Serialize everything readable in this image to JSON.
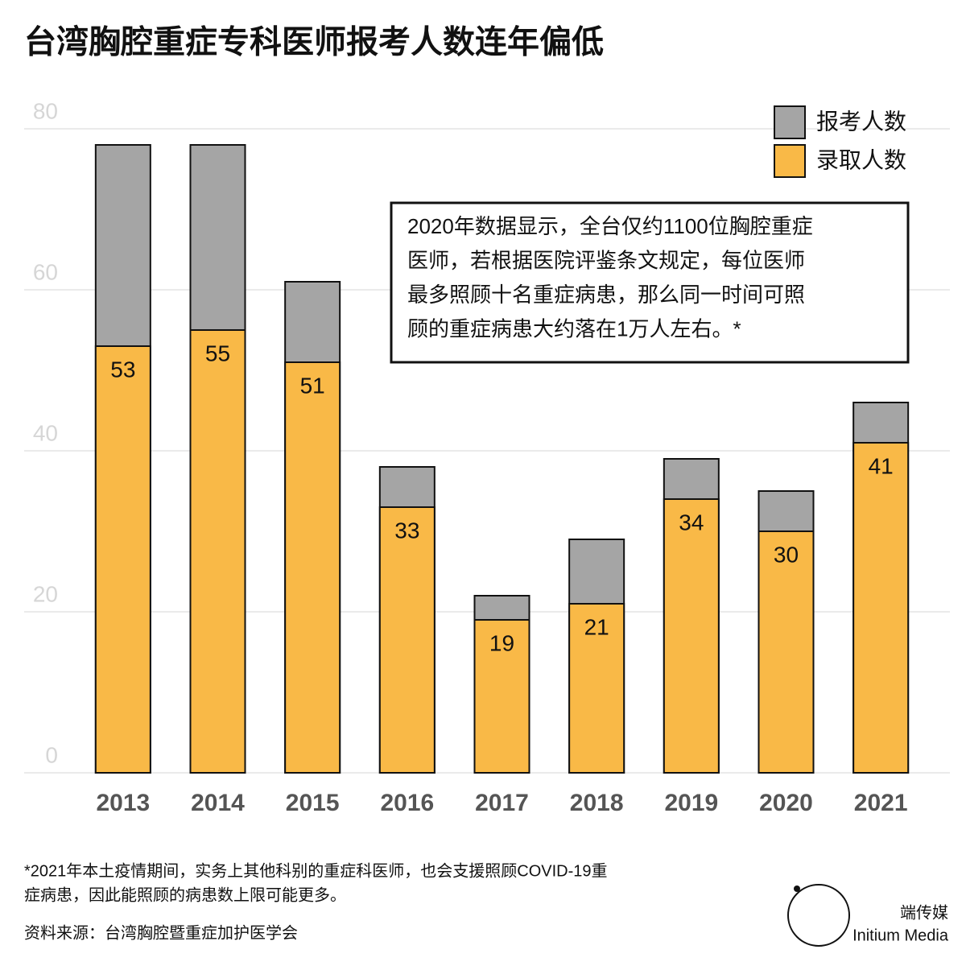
{
  "chart_data": {
    "type": "bar",
    "title": "台湾胸腔重症专科医师报考人数连年偏低",
    "categories": [
      "2013",
      "2014",
      "2015",
      "2016",
      "2017",
      "2018",
      "2019",
      "2020",
      "2021"
    ],
    "series": [
      {
        "name": "报考人数",
        "color": "#a5a5a5",
        "values": [
          78,
          78,
          61,
          38,
          22,
          29,
          39,
          35,
          46
        ]
      },
      {
        "name": "录取人数",
        "color": "#f9b947",
        "values": [
          53,
          55,
          51,
          33,
          19,
          21,
          34,
          30,
          41
        ]
      }
    ],
    "ylim": [
      0,
      80
    ],
    "yticks": [
      0,
      20,
      40,
      60,
      80
    ],
    "grid": true,
    "legend": "top-right",
    "annotation": [
      "2020年数据显示，全台仅约1100位胸腔重症",
      "医师，若根据医院评鉴条文规定，每位医师",
      "最多照顾十名重症病患，那么同一时间可照",
      "顾的重症病患大约落在1万人左右。*"
    ],
    "footnote": [
      "*2021年本土疫情期间，实务上其他科别的重症科医师，也会支援照顾COVID-19重",
      "症病患，因此能照顾的病患数上限可能更多。"
    ],
    "source": "资料来源：台湾胸腔暨重症加护医学会",
    "brand": [
      "端传媒",
      "Initium Media"
    ]
  }
}
